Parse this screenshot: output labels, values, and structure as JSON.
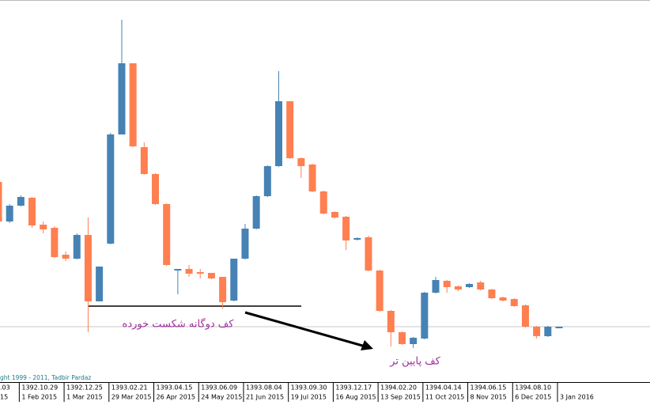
{
  "chart_data": {
    "type": "candlestick",
    "ylim": [
      0,
      483
    ],
    "up_color": "#4682b4",
    "down_color": "#ff7f50",
    "open": [
      253,
      203,
      223,
      233,
      199,
      195,
      161,
      156,
      186,
      102,
      175,
      313,
      403,
      297,
      263,
      225,
      141,
      143,
      139,
      138,
      133,
      103,
      156,
      194,
      235,
      273,
      355,
      283,
      275,
      241,
      215,
      209,
      180,
      183,
      141,
      90,
      63,
      48,
      55,
      113,
      128,
      121,
      120,
      126,
      117,
      107,
      105,
      97,
      70,
      58,
      68
    ],
    "high": [
      255,
      225,
      236,
      234,
      203,
      197,
      165,
      188,
      208,
      146,
      315,
      458,
      403,
      303,
      264,
      226,
      143,
      148,
      143,
      138,
      133,
      156,
      200,
      236,
      274,
      393,
      355,
      284,
      276,
      242,
      216,
      210,
      183,
      185,
      142,
      91,
      64,
      57,
      114,
      133,
      129,
      122,
      125,
      128,
      118,
      108,
      106,
      98,
      71,
      71,
      70
    ],
    "low": [
      201,
      201,
      222,
      195,
      188,
      157,
      153,
      155,
      63,
      102,
      174,
      313,
      297,
      262,
      224,
      147,
      111,
      133,
      131,
      130,
      93,
      102,
      155,
      193,
      234,
      272,
      282,
      258,
      240,
      212,
      207,
      167,
      179,
      140,
      89,
      45,
      47,
      43,
      54,
      112,
      113,
      115,
      119,
      116,
      105,
      102,
      95,
      69,
      55,
      57,
      68
    ],
    "close": [
      203,
      223,
      234,
      198,
      193,
      158,
      156,
      186,
      102,
      146,
      313,
      403,
      298,
      263,
      225,
      148,
      143,
      137,
      137,
      131,
      101,
      156,
      194,
      235,
      273,
      355,
      283,
      273,
      241,
      213,
      208,
      179,
      182,
      141,
      90,
      63,
      48,
      56,
      113,
      129,
      120,
      117,
      124,
      117,
      106,
      103,
      96,
      70,
      58,
      70,
      70
    ],
    "categories": [
      null,
      null,
      "1 Feb 2015",
      null,
      null,
      null,
      "1 Mar 2015",
      null,
      null,
      null,
      "29 Mar 2015",
      null,
      null,
      null,
      "26 Apr 2015",
      null,
      null,
      null,
      "24 May 2015",
      null,
      null,
      null,
      "21 Jun 2015",
      null,
      null,
      null,
      "19 Jul 2015",
      null,
      null,
      null,
      "16 Aug 2015",
      null,
      null,
      null,
      "13 Sep 2015",
      null,
      null,
      null,
      "11 Oct 2015",
      null,
      null,
      null,
      "8 Nov 2015",
      null,
      null,
      null,
      "6 Dec 2015",
      null,
      null,
      null,
      "3 Jan 2016"
    ],
    "persian_dates": [
      null,
      null,
      "1392.10.29",
      null,
      null,
      null,
      "1392.12.25",
      null,
      null,
      null,
      "1393.02.21",
      null,
      null,
      null,
      "1393.04.15",
      null,
      null,
      null,
      "1393.06.09",
      null,
      null,
      null,
      "1393.08.04",
      null,
      null,
      null,
      "1393.09.30",
      null,
      null,
      null,
      "1393.12.17",
      null,
      null,
      null,
      "1394.02.20",
      null,
      null,
      null,
      "1394.04.14",
      null,
      null,
      null,
      "1394.06.15",
      null,
      null,
      null,
      "1394.08.10",
      null,
      null,
      null,
      null
    ],
    "clipped_labels": {
      "gregorian": "15",
      "persian": ".03"
    },
    "copyright": "ght 1999 - 2011, Tadbir Pardaz",
    "price_line": 70,
    "support_level": 96,
    "annotations": [
      "کف دوگانه شکست خورده",
      "کف پایین تر"
    ]
  }
}
